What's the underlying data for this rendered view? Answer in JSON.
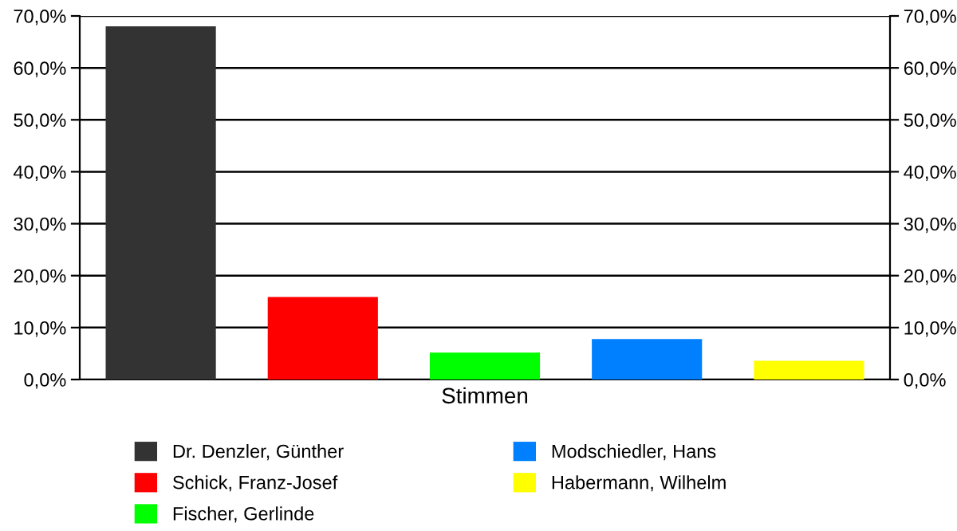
{
  "chart_data": {
    "type": "bar",
    "categories": [
      "Stimmen"
    ],
    "series": [
      {
        "name": "Dr. Denzler, Günther",
        "color": "#333333",
        "values": [
          68.0
        ]
      },
      {
        "name": "Schick, Franz-Josef",
        "color": "#ff0000",
        "values": [
          15.9
        ]
      },
      {
        "name": "Fischer, Gerlinde",
        "color": "#00ff00",
        "values": [
          5.2
        ]
      },
      {
        "name": "Modschiedler, Hans",
        "color": "#0080ff",
        "values": [
          7.8
        ]
      },
      {
        "name": "Habermann, Wilhelm",
        "color": "#ffff00",
        "values": [
          3.6
        ]
      }
    ],
    "ylim": [
      0,
      70
    ],
    "yticks": [
      {
        "value": 0,
        "label": "0,0%"
      },
      {
        "value": 10,
        "label": "10,0%"
      },
      {
        "value": 20,
        "label": "20,0%"
      },
      {
        "value": 30,
        "label": "30,0%"
      },
      {
        "value": 40,
        "label": "40,0%"
      },
      {
        "value": 50,
        "label": "50,0%"
      },
      {
        "value": 60,
        "label": "60,0%"
      },
      {
        "value": 70,
        "label": "70,0%"
      }
    ],
    "grid": "y",
    "legend": "bottom"
  }
}
